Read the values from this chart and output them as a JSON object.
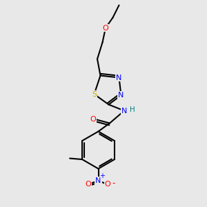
{
  "background_color": "#e8e8e8",
  "bond_color": "#000000",
  "atom_colors": {
    "O": "#ff0000",
    "N": "#0000ff",
    "S": "#ccaa00",
    "H": "#008080",
    "C": "#000000"
  },
  "figsize": [
    3.0,
    3.0
  ],
  "dpi": 100
}
